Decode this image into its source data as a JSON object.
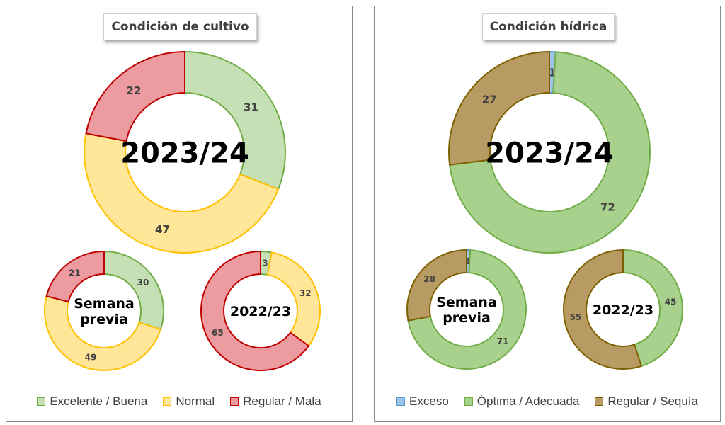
{
  "panels": [
    {
      "title": "Condición  de cultivo",
      "legend": [
        {
          "label": "Excelente / Buena",
          "fill": "#c5e0b4",
          "stroke": "#70ad47"
        },
        {
          "label": "Normal",
          "fill": "#ffe699",
          "stroke": "#ffc000"
        },
        {
          "label": "Regular / Mala",
          "fill": "#ec9ba0",
          "stroke": "#c00000"
        }
      ]
    },
    {
      "title": "Condición  hídrica",
      "legend": [
        {
          "label": "Exceso",
          "fill": "#9dc3e6",
          "stroke": "#5b9bd5"
        },
        {
          "label": "Óptima / Adecuada",
          "fill": "#a9d18e",
          "stroke": "#70ad47"
        },
        {
          "label": "Regular / Sequía",
          "fill": "#b89b62",
          "stroke": "#7f6000"
        }
      ]
    }
  ],
  "chart_data": [
    {
      "type": "doughnut",
      "title": "2023/24",
      "categories": [
        "Excelente / Buena",
        "Normal",
        "Regular / Mala"
      ],
      "values": [
        31,
        47,
        22
      ],
      "colors": [
        "#c5e0b4",
        "#ffe699",
        "#ec9ba0"
      ],
      "strokes": [
        "#70ad47",
        "#ffc000",
        "#c00000"
      ]
    },
    {
      "type": "doughnut",
      "title": "Semana previa",
      "title_lines": [
        "Semana",
        "previa"
      ],
      "categories": [
        "Excelente / Buena",
        "Normal",
        "Regular / Mala"
      ],
      "values": [
        30,
        49,
        21
      ],
      "colors": [
        "#c5e0b4",
        "#ffe699",
        "#ec9ba0"
      ],
      "strokes": [
        "#70ad47",
        "#ffc000",
        "#c00000"
      ]
    },
    {
      "type": "doughnut",
      "title": "2022/23",
      "categories": [
        "Excelente / Buena",
        "Normal",
        "Regular / Mala"
      ],
      "values": [
        3,
        32,
        65
      ],
      "colors": [
        "#c5e0b4",
        "#ffe699",
        "#ec9ba0"
      ],
      "strokes": [
        "#70ad47",
        "#ffc000",
        "#c00000"
      ]
    },
    {
      "type": "doughnut",
      "title": "2023/24",
      "categories": [
        "Exceso",
        "Óptima / Adecuada",
        "Regular / Sequía"
      ],
      "values": [
        1,
        72,
        27
      ],
      "colors": [
        "#9dc3e6",
        "#a9d18e",
        "#b89b62"
      ],
      "strokes": [
        "#5b9bd5",
        "#70ad47",
        "#7f6000"
      ]
    },
    {
      "type": "doughnut",
      "title": "Semana previa",
      "title_lines": [
        "Semana",
        "previa"
      ],
      "categories": [
        "Exceso",
        "Óptima / Adecuada",
        "Regular / Sequía"
      ],
      "values": [
        1,
        71,
        28
      ],
      "colors": [
        "#9dc3e6",
        "#a9d18e",
        "#b89b62"
      ],
      "strokes": [
        "#5b9bd5",
        "#70ad47",
        "#7f6000"
      ]
    },
    {
      "type": "doughnut",
      "title": "2022/23",
      "categories": [
        "Exceso",
        "Óptima / Adecuada",
        "Regular / Sequía"
      ],
      "values": [
        0,
        45,
        55
      ],
      "colors": [
        "#9dc3e6",
        "#a9d18e",
        "#b89b62"
      ],
      "strokes": [
        "#5b9bd5",
        "#70ad47",
        "#7f6000"
      ]
    }
  ]
}
